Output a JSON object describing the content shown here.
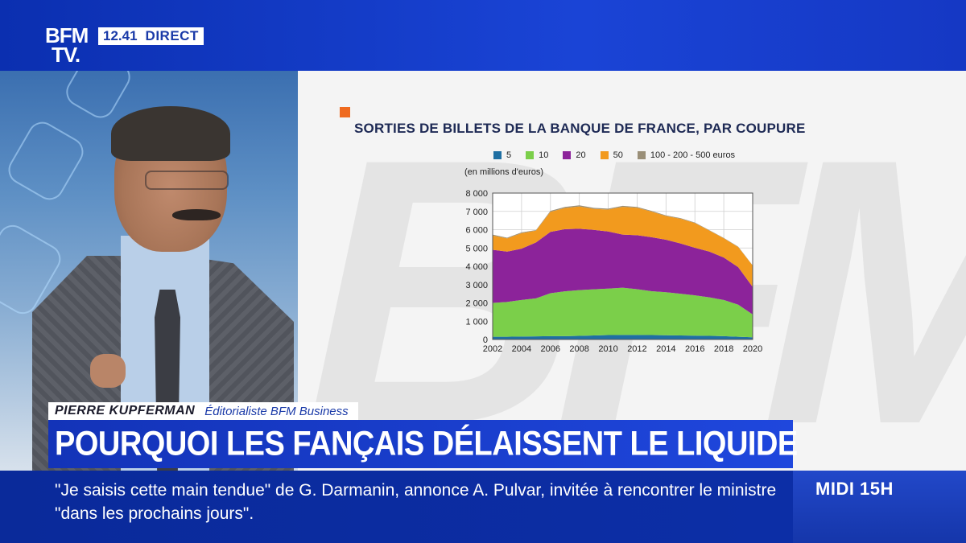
{
  "channel": {
    "logo_line1": "BFM",
    "logo_line2": "TV.",
    "time": "12.41",
    "live_label": "DIRECT"
  },
  "lower_third": {
    "name": "PIERRE KUPFERMAN",
    "role": "Éditorialiste BFM Business",
    "headline": "POURQUOI LES FANÇAIS DÉLAISSENT LE LIQUIDE"
  },
  "ticker": {
    "text": "\"Je saisis cette main tendue\" de G. Darmanin, annonce A. Pulvar, invitée à rencontrer le ministre \"dans les prochains jours\".",
    "show": "MIDI 15H"
  },
  "colors": {
    "accent": "#ef6a1f",
    "s5": "#1f6fa3",
    "s10": "#7bcf4a",
    "s20": "#8c239a",
    "s50": "#f29a1e",
    "s100": "#9a8f78"
  },
  "chart_data": {
    "type": "area",
    "stacked": true,
    "title": "SORTIES DE BILLETS DE LA BANQUE DE FRANCE, PAR COUPURE",
    "ylabel": "(en millions d'euros)",
    "x": [
      2002,
      2003,
      2004,
      2005,
      2006,
      2007,
      2008,
      2009,
      2010,
      2011,
      2012,
      2013,
      2014,
      2015,
      2016,
      2017,
      2018,
      2019,
      2020
    ],
    "xticks": [
      "2002",
      "2004",
      "2006",
      "2008",
      "2010",
      "2012",
      "2014",
      "2016",
      "2018",
      "2020"
    ],
    "yticks": [
      "0",
      "1 000",
      "2 000",
      "3 000",
      "4 000",
      "5 000",
      "6 000",
      "7 000",
      "8 000"
    ],
    "ylim": [
      0,
      8000
    ],
    "series": [
      {
        "name": "5",
        "color": "#1f6fa3",
        "values": [
          150,
          150,
          160,
          170,
          180,
          180,
          200,
          220,
          240,
          250,
          250,
          240,
          230,
          220,
          210,
          200,
          180,
          150,
          120
        ]
      },
      {
        "name": "10",
        "color": "#7bcf4a",
        "values": [
          1850,
          1900,
          2000,
          2080,
          2350,
          2450,
          2500,
          2520,
          2540,
          2580,
          2500,
          2400,
          2350,
          2280,
          2200,
          2100,
          1980,
          1750,
          1250
        ]
      },
      {
        "name": "20",
        "color": "#8c239a",
        "values": [
          2900,
          2750,
          2800,
          3050,
          3350,
          3400,
          3350,
          3250,
          3120,
          2900,
          2950,
          2950,
          2870,
          2750,
          2600,
          2500,
          2320,
          2050,
          1500
        ]
      },
      {
        "name": "50",
        "color": "#f29a1e",
        "values": [
          780,
          720,
          850,
          650,
          1100,
          1150,
          1220,
          1150,
          1200,
          1520,
          1500,
          1400,
          1300,
          1350,
          1350,
          1150,
          1050,
          1100,
          1170
        ]
      },
      {
        "name": "100 - 200 - 500 euros",
        "color": "#9a8f78",
        "values": [
          50,
          40,
          40,
          30,
          50,
          60,
          60,
          50,
          50,
          50,
          40,
          40,
          30,
          30,
          30,
          20,
          20,
          20,
          10
        ]
      }
    ]
  }
}
